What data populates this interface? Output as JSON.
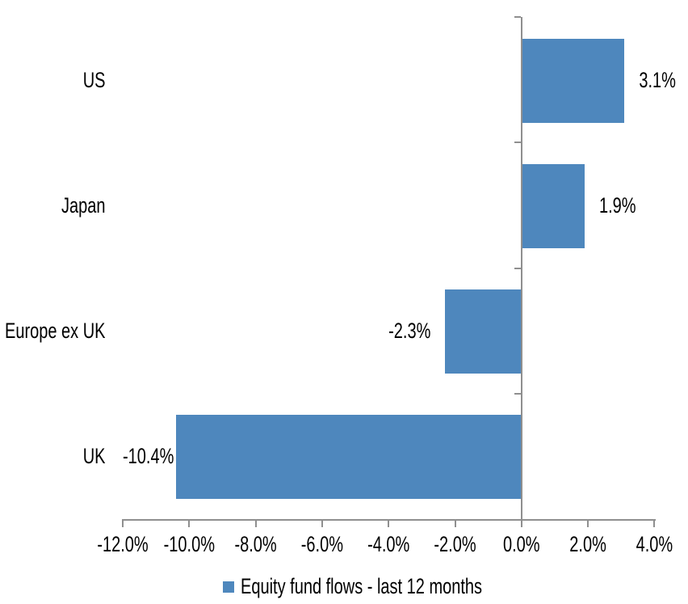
{
  "chart_data": {
    "type": "bar",
    "orientation": "horizontal",
    "title": "",
    "categories": [
      "US",
      "Japan",
      "Europe ex UK",
      "UK"
    ],
    "values": [
      3.1,
      1.9,
      -2.3,
      -10.4
    ],
    "data_labels": [
      "3.1%",
      "1.9%",
      "-2.3%",
      "-10.4%"
    ],
    "series": [
      {
        "name": "Equity fund flows - last 12 months",
        "values": [
          3.1,
          1.9,
          -2.3,
          -10.4
        ]
      }
    ],
    "series_name": "Equity fund flows - last 12 months",
    "xlabel": "",
    "ylabel": "",
    "xlim": [
      -12,
      4
    ],
    "x_ticks": [
      -12,
      -10,
      -8,
      -6,
      -4,
      -2,
      0,
      2,
      4
    ],
    "x_tick_labels": [
      "-12.0%",
      "-10.0%",
      "-8.0%",
      "-6.0%",
      "-4.0%",
      "-2.0%",
      "0.0%",
      "2.0%",
      "4.0%"
    ],
    "grid": false,
    "legend_position": "bottom",
    "colors": {
      "bar": "#4e87bd",
      "axis": "#8f8f8f",
      "text": "#000000",
      "background": "#ffffff"
    }
  },
  "legend": {
    "label": "Equity fund flows - last 12 months"
  }
}
